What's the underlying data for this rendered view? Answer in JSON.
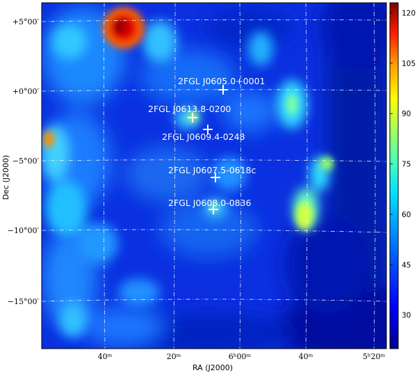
{
  "image": {
    "colormap": "jet",
    "description_colors": {
      "low": "#00008f",
      "mid": "#00c8ff",
      "high": "#800000"
    }
  },
  "axes": {
    "x_title": "RA (J2000)",
    "y_title": "Dec (J2000)",
    "x_ticks": [
      "40ᵐ",
      "20ᵐ",
      "6ʰ00ᵐ",
      "40ᵐ",
      "5ʰ20ᵐ"
    ],
    "y_ticks": [
      "+5°00′",
      "+0°00′",
      "−5°00′",
      "−10°00′",
      "−15°00′"
    ]
  },
  "sources": [
    {
      "name": "2FGL J0605.0+0001"
    },
    {
      "name": "2FGL J0613.8-0200"
    },
    {
      "name": "2FGL J0609.4-0248"
    },
    {
      "name": "2FGL J0607.5-0618c"
    },
    {
      "name": "2FGL J0608.0-0836"
    }
  ],
  "colorbar": {
    "ticks": [
      "120",
      "105",
      "90",
      "75",
      "60",
      "45",
      "30"
    ],
    "min": 20,
    "max": 123
  }
}
